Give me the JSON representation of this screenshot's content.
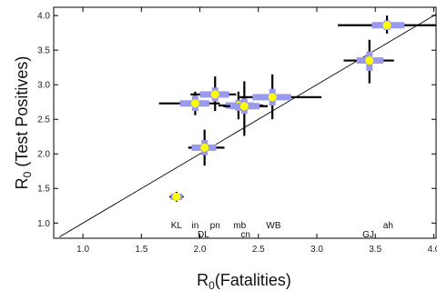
{
  "chart_data": {
    "type": "scatter",
    "title": "",
    "xlabel_main": "R",
    "xlabel_sub": "0",
    "xlabel_rest": "(Fatalities)",
    "ylabel_main": "R",
    "ylabel_sub": "0",
    "ylabel_rest": " (Test Positives)",
    "xlim": [
      0.75,
      4.02
    ],
    "ylim": [
      0.78,
      4.12
    ],
    "xticks": [
      1.0,
      1.5,
      2.0,
      2.5,
      3.0,
      3.5,
      4.0
    ],
    "xtick_labels": [
      "1.0",
      "1.5",
      "2.0",
      "2.5",
      "3.0",
      "3.5",
      "4.0"
    ],
    "yticks": [
      1.0,
      1.5,
      2.0,
      2.5,
      3.0,
      3.5,
      4.0
    ],
    "ytick_labels": [
      "1.0",
      "1.5",
      "2.0",
      "2.5",
      "3.0",
      "3.5",
      "4.0"
    ],
    "grid": false,
    "reference_line": {
      "slope": 1,
      "intercept": 0
    },
    "colors": {
      "inner_error": "#9999ee",
      "outer_error": "#000000",
      "marker": "#ffff00",
      "line": "#000000"
    },
    "points": [
      {
        "x": 1.8,
        "y": 1.38,
        "x_inner": [
          1.75,
          1.85
        ],
        "x_outer": [
          1.74,
          1.86
        ],
        "y_inner": [
          1.33,
          1.43
        ],
        "y_outer": [
          1.31,
          1.45
        ]
      },
      {
        "x": 2.04,
        "y": 2.09,
        "x_inner": [
          1.93,
          2.14
        ],
        "x_outer": [
          1.9,
          2.21
        ],
        "y_inner": [
          1.98,
          2.2
        ],
        "y_outer": [
          1.83,
          2.35
        ]
      },
      {
        "x": 1.96,
        "y": 2.73,
        "x_inner": [
          1.83,
          2.08
        ],
        "x_outer": [
          1.65,
          2.17
        ],
        "y_inner": [
          2.62,
          2.84
        ],
        "y_outer": [
          2.56,
          2.9
        ]
      },
      {
        "x": 2.13,
        "y": 2.86,
        "x_inner": [
          2.0,
          2.25
        ],
        "x_outer": [
          1.92,
          2.31
        ],
        "y_inner": [
          2.76,
          2.96
        ],
        "y_outer": [
          2.62,
          3.12
        ]
      },
      {
        "x": 2.33,
        "y": 2.7,
        "x_inner": [
          2.22,
          2.46
        ],
        "x_outer": [
          2.16,
          2.54
        ],
        "y_inner": [
          2.62,
          2.78
        ],
        "y_outer": [
          2.5,
          2.9
        ]
      },
      {
        "x": 2.38,
        "y": 2.69,
        "x_inner": [
          2.26,
          2.51
        ],
        "x_outer": [
          2.2,
          2.58
        ],
        "y_inner": [
          2.58,
          2.8
        ],
        "y_outer": [
          2.26,
          3.05
        ]
      },
      {
        "x": 2.62,
        "y": 2.82,
        "x_inner": [
          2.45,
          2.78
        ],
        "x_outer": [
          2.34,
          3.04
        ],
        "y_inner": [
          2.7,
          2.94
        ],
        "y_outer": [
          2.5,
          3.15
        ]
      },
      {
        "x": 3.45,
        "y": 3.35,
        "x_inner": [
          3.34,
          3.57
        ],
        "x_outer": [
          3.23,
          3.66
        ],
        "y_inner": [
          3.2,
          3.48
        ],
        "y_outer": [
          3.02,
          3.65
        ]
      },
      {
        "x": 3.6,
        "y": 3.86,
        "x_inner": [
          3.47,
          3.75
        ],
        "x_outer": [
          3.18,
          4.02
        ],
        "y_inner": [
          3.79,
          3.93
        ],
        "y_outer": [
          3.74,
          4.0
        ]
      }
    ],
    "annotations": [
      {
        "text": "KL",
        "x": 1.8,
        "y": 0.97
      },
      {
        "text": "in",
        "x": 1.96,
        "y": 0.97
      },
      {
        "text": "DL",
        "x": 2.03,
        "y": 0.84
      },
      {
        "text": "pn",
        "x": 2.13,
        "y": 0.97
      },
      {
        "text": "mb",
        "x": 2.34,
        "y": 0.97
      },
      {
        "text": "cn",
        "x": 2.39,
        "y": 0.84
      },
      {
        "text": "WB",
        "x": 2.63,
        "y": 0.97
      },
      {
        "text": "GJ",
        "x": 3.44,
        "y": 0.84
      },
      {
        "text": "ah",
        "x": 3.61,
        "y": 0.97
      }
    ]
  }
}
